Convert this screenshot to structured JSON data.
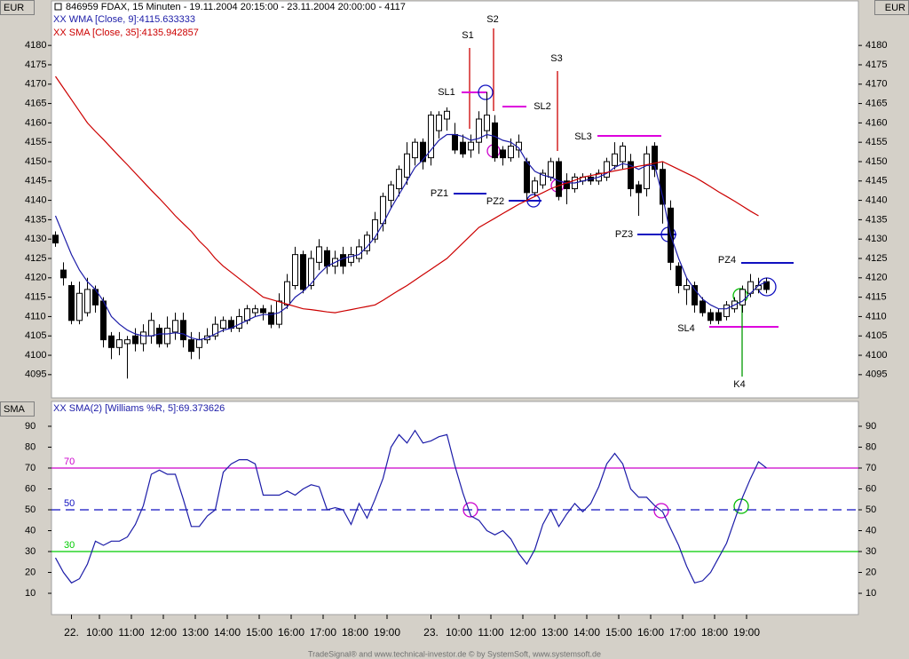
{
  "chart_data": [
    {
      "type": "candlestick",
      "title": "846959  FDAX, 15 Minuten - 19.11.2004 20:15:00 - 23.11.2004 20:00:00 - 4117",
      "ylabel": "EUR",
      "xlim": [
        -0.5,
        100.5
      ],
      "ylim": [
        4089,
        4191.5
      ],
      "yticks": [
        4095,
        4100,
        4105,
        4110,
        4115,
        4120,
        4125,
        4130,
        4135,
        4140,
        4145,
        4150,
        4155,
        4160,
        4165,
        4170,
        4175,
        4180
      ],
      "up_color": "#ffffff",
      "down_color": "#000000",
      "open": [
        4131,
        4122,
        4118,
        4109,
        4111,
        4117,
        4114,
        4105,
        4102,
        4103,
        4105,
        4103,
        4105,
        4107,
        4103,
        4106,
        4109,
        4104,
        4102,
        4104,
        4105,
        4107,
        4109,
        4107,
        4109,
        4111,
        4112,
        4111,
        4108,
        4113,
        4118,
        4126,
        4118,
        4124,
        4127,
        4123,
        4126,
        4124,
        4125,
        4127,
        4130,
        4134,
        4140,
        4143,
        4146,
        4151,
        4155,
        4151,
        4158,
        4161,
        4157,
        4155,
        4153,
        4155,
        4158,
        4160,
        4153,
        4151,
        4153,
        4150,
        4142,
        4144,
        4146,
        4150,
        4145,
        4143,
        4145,
        4146,
        4145,
        4146,
        4149,
        4150,
        4150,
        4144,
        4143,
        4154,
        4148,
        4138,
        4123,
        4117,
        4118,
        4114,
        4111,
        4111,
        4110,
        4112,
        4113,
        4116,
        4117,
        4119
      ],
      "high": [
        4132,
        4124,
        4119,
        4119,
        4120,
        4118,
        4115,
        4106,
        4106,
        4105,
        4107,
        4108,
        4111,
        4108,
        4110,
        4111,
        4111,
        4106,
        4106,
        4107,
        4110,
        4110,
        4110,
        4112,
        4113,
        4113,
        4113,
        4113,
        4116,
        4121,
        4128,
        4127,
        4127,
        4130,
        4128,
        4127,
        4128,
        4128,
        4130,
        4132,
        4137,
        4142,
        4145,
        4149,
        4155,
        4156,
        4156,
        4163,
        4163,
        4164,
        4160,
        4157,
        4157,
        4163,
        4168,
        4162,
        4154,
        4156,
        4157,
        4151,
        4146,
        4148,
        4151,
        4151,
        4147,
        4147,
        4147,
        4147,
        4148,
        4151,
        4155,
        4155,
        4152,
        4145,
        4154,
        4155,
        4150,
        4140,
        4124,
        4120,
        4119,
        4115,
        4112,
        4112,
        4114,
        4115,
        4118,
        4121,
        4120,
        4120
      ],
      "low": [
        4128,
        4118,
        4108,
        4108,
        4110,
        4111,
        4102,
        4099,
        4100,
        4094,
        4101,
        4101,
        4103,
        4102,
        4102,
        4104,
        4102,
        4099,
        4099,
        4103,
        4104,
        4106,
        4106,
        4106,
        4108,
        4110,
        4109,
        4107,
        4107,
        4112,
        4117,
        4116,
        4117,
        4122,
        4121,
        4121,
        4121,
        4123,
        4124,
        4126,
        4129,
        4132,
        4138,
        4141,
        4144,
        4149,
        4148,
        4149,
        4156,
        4158,
        4152,
        4151,
        4151,
        4152,
        4156,
        4150,
        4149,
        4150,
        4151,
        4140,
        4141,
        4143,
        4145,
        4140,
        4139,
        4142,
        4144,
        4144,
        4144,
        4145,
        4148,
        4148,
        4141,
        4136,
        4141,
        4146,
        4134,
        4122,
        4116,
        4113,
        4111,
        4110,
        4108,
        4108,
        4109,
        4111,
        4111,
        4115,
        4116,
        4116
      ],
      "close": [
        4129,
        4120,
        4109,
        4116,
        4117,
        4113,
        4104,
        4102,
        4104,
        4104,
        4103,
        4106,
        4109,
        4103,
        4107,
        4109,
        4104,
        4101,
        4104,
        4105,
        4108,
        4109,
        4107,
        4110,
        4112,
        4112,
        4111,
        4108,
        4114,
        4119,
        4126,
        4117,
        4125,
        4128,
        4123,
        4125,
        4123,
        4126,
        4128,
        4131,
        4135,
        4141,
        4144,
        4148,
        4152,
        4155,
        4150,
        4162,
        4162,
        4163,
        4153,
        4152,
        4155,
        4161,
        4162,
        4151,
        4151,
        4154,
        4155,
        4142,
        4145,
        4147,
        4150,
        4141,
        4143,
        4146,
        4146,
        4145,
        4147,
        4150,
        4152,
        4154,
        4143,
        4142,
        4152,
        4148,
        4139,
        4124,
        4118,
        4118,
        4113,
        4111,
        4109,
        4109,
        4113,
        4114,
        4117,
        4119,
        4118,
        4117
      ],
      "series": [
        {
          "name": "XX WMA [Close, 9]:4115.633333",
          "color": "#1c1ca8",
          "values": [
            4136,
            4131,
            4126,
            4122,
            4119,
            4117,
            4114,
            4110,
            4108,
            4106.5,
            4105.5,
            4105,
            4105,
            4105.5,
            4105.5,
            4105.8,
            4105.5,
            4104.5,
            4104,
            4104.5,
            4105.5,
            4106.5,
            4107,
            4108,
            4109,
            4110,
            4110.5,
            4110.5,
            4111,
            4112.5,
            4115,
            4116.5,
            4118.5,
            4121,
            4123,
            4124,
            4125,
            4125.5,
            4126,
            4128,
            4130.5,
            4134,
            4138,
            4141.5,
            4145,
            4148.5,
            4150.5,
            4153,
            4155.5,
            4157,
            4157,
            4156.5,
            4155.5,
            4156,
            4157,
            4156.5,
            4155.5,
            4155,
            4153.5,
            4150,
            4147.5,
            4146.5,
            4146,
            4145,
            4144.5,
            4144.5,
            4145,
            4145.5,
            4146,
            4147,
            4148.5,
            4149.5,
            4149,
            4148,
            4149,
            4149,
            4141,
            4131,
            4125,
            4120,
            4117,
            4114.5,
            4113,
            4112,
            4112,
            4113,
            4114,
            4116,
            4118,
            4119
          ]
        },
        {
          "name": "XX SMA [Close, 35]:4135.942857",
          "color": "#cc0000",
          "values": [
            4172,
            4169,
            4166,
            4163,
            4160,
            4157.8,
            4155.7,
            4153.5,
            4151.3,
            4149.2,
            4147,
            4144.8,
            4142.6,
            4140.5,
            4138.3,
            4136,
            4134,
            4132,
            4129.5,
            4127.5,
            4125,
            4123,
            4121.4,
            4119.8,
            4118.2,
            4116.6,
            4115,
            4114.4,
            4113.8,
            4113.2,
            4112.6,
            4112,
            4111.8,
            4111.5,
            4111.2,
            4111,
            4111.4,
            4111.8,
            4112.2,
            4112.6,
            4113,
            4114.2,
            4115.5,
            4116.8,
            4118,
            4119.4,
            4120.8,
            4122.2,
            4123.6,
            4125,
            4127,
            4129,
            4131,
            4133,
            4134.2,
            4135.4,
            4136.6,
            4137.8,
            4139,
            4140,
            4141,
            4142,
            4143,
            4143.8,
            4144.5,
            4145.2,
            4146,
            4146.4,
            4146.8,
            4147.2,
            4147.6,
            4148,
            4148.4,
            4148.8,
            4149.2,
            4149.6,
            4150,
            4149,
            4148,
            4147,
            4146,
            4144.8,
            4143.5,
            4142.2,
            4141,
            4139.8,
            4138.5,
            4137.2,
            4136,
            null
          ]
        }
      ],
      "annotations": [
        "S1",
        "S2",
        "S3",
        "SL1",
        "SL2",
        "SL3",
        "PZ1",
        "PZ2",
        "PZ3",
        "PZ4",
        "SL4",
        "K4"
      ]
    },
    {
      "type": "line",
      "ylabel": "SMA",
      "xlim": [
        -0.5,
        100.5
      ],
      "ylim": [
        -0.2,
        101.9
      ],
      "yticks": [
        10,
        20,
        30,
        40,
        50,
        60,
        70,
        80,
        90
      ],
      "xticks": [
        {
          "value": 2,
          "label": "22."
        },
        {
          "value": 5.5,
          "label": "10:00"
        },
        {
          "value": 9.5,
          "label": "11:00"
        },
        {
          "value": 13.5,
          "label": "12:00"
        },
        {
          "value": 17.5,
          "label": "13:00"
        },
        {
          "value": 21.5,
          "label": "14:00"
        },
        {
          "value": 25.5,
          "label": "15:00"
        },
        {
          "value": 29.5,
          "label": "16:00"
        },
        {
          "value": 33.5,
          "label": "17:00"
        },
        {
          "value": 37.5,
          "label": "18:00"
        },
        {
          "value": 41.5,
          "label": "19:00"
        },
        {
          "value": 47,
          "label": "23."
        },
        {
          "value": 50.5,
          "label": "10:00"
        },
        {
          "value": 54.5,
          "label": "11:00"
        },
        {
          "value": 58.5,
          "label": "12:00"
        },
        {
          "value": 62.5,
          "label": "13:00"
        },
        {
          "value": 66.5,
          "label": "14:00"
        },
        {
          "value": 70.5,
          "label": "15:00"
        },
        {
          "value": 74.5,
          "label": "16:00"
        },
        {
          "value": 78.5,
          "label": "17:00"
        },
        {
          "value": 82.5,
          "label": "18:00"
        },
        {
          "value": 86.5,
          "label": "19:00"
        }
      ],
      "levels": [
        {
          "value": 70,
          "color": "#cc00cc",
          "dashed": false
        },
        {
          "value": 50,
          "color": "#1010c0",
          "dashed": true
        },
        {
          "value": 30,
          "color": "#00cc00",
          "dashed": false
        }
      ],
      "series": [
        {
          "name": "XX SMA(2) [Williams %R, 5]:69.373626",
          "color": "#1c1ca8",
          "values": [
            27,
            20,
            15,
            17,
            24,
            35,
            33,
            35,
            35,
            37,
            43,
            52,
            67,
            69,
            67,
            67,
            55,
            42,
            42,
            47,
            50,
            68,
            72,
            74,
            74,
            72,
            57,
            57,
            57,
            59,
            57,
            60,
            62,
            61,
            50,
            51,
            50,
            43,
            53,
            46,
            55,
            65,
            80,
            86,
            82,
            88,
            82,
            83,
            85,
            86,
            71,
            58,
            47,
            45,
            40,
            38,
            40,
            36,
            29,
            24,
            31,
            43,
            50,
            42,
            48,
            53,
            49,
            53,
            61,
            72,
            77,
            72,
            60,
            56,
            56,
            52,
            49,
            41,
            33,
            23,
            15,
            16,
            20,
            27,
            34,
            45,
            56,
            65,
            73,
            70
          ]
        }
      ]
    }
  ],
  "footer": "TradeSignal® and www.technical-investor.de © by SystemSoft, www.systemsoft.de"
}
